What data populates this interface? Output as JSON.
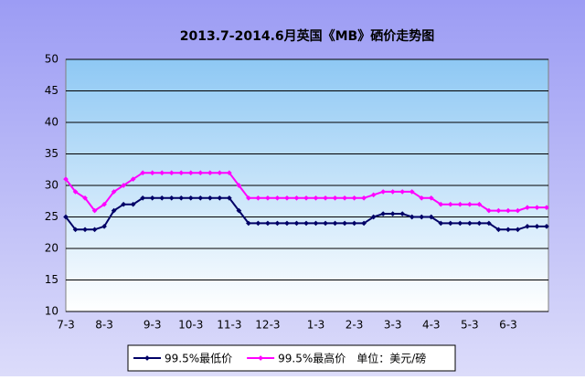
{
  "chart_data": {
    "type": "line",
    "title": "2013.7-2014.6月英国《MB》硒价走势图",
    "categories": [
      "7-3",
      null,
      null,
      null,
      "8-3",
      null,
      null,
      null,
      null,
      "9-3",
      null,
      null,
      null,
      "10-3",
      null,
      null,
      null,
      "11-3",
      null,
      null,
      null,
      "12-3",
      null,
      null,
      null,
      null,
      "1-3",
      null,
      null,
      null,
      "2-3",
      null,
      null,
      null,
      "3-3",
      null,
      null,
      null,
      "4-3",
      null,
      null,
      null,
      "5-3",
      null,
      null,
      null,
      "6-3",
      null,
      null,
      null,
      null
    ],
    "series": [
      {
        "name": "99.5%最低价",
        "color": "#000066",
        "values": [
          25,
          23,
          23,
          23,
          23.5,
          26,
          27,
          27,
          28,
          28,
          28,
          28,
          28,
          28,
          28,
          28,
          28,
          28,
          26,
          24,
          24,
          24,
          24,
          24,
          24,
          24,
          24,
          24,
          24,
          24,
          24,
          24,
          25,
          25.5,
          25.5,
          25.5,
          25,
          25,
          25,
          24,
          24,
          24,
          24,
          24,
          24,
          23,
          23,
          23,
          23.5,
          23.5,
          23.5
        ]
      },
      {
        "name": "99.5%最高价",
        "color": "#ff00ff",
        "values": [
          31,
          29,
          28,
          26,
          27,
          29,
          30,
          31,
          32,
          32,
          32,
          32,
          32,
          32,
          32,
          32,
          32,
          32,
          30,
          28,
          28,
          28,
          28,
          28,
          28,
          28,
          28,
          28,
          28,
          28,
          28,
          28,
          28.5,
          29,
          29,
          29,
          29,
          28,
          28,
          27,
          27,
          27,
          27,
          27,
          26,
          26,
          26,
          26,
          26.5,
          26.5,
          26.5
        ]
      }
    ],
    "unit": "单位：美元/磅",
    "ylim": [
      10,
      50
    ],
    "yticks": [
      10,
      15,
      20,
      25,
      30,
      35,
      40,
      45,
      50
    ],
    "grid": true
  }
}
